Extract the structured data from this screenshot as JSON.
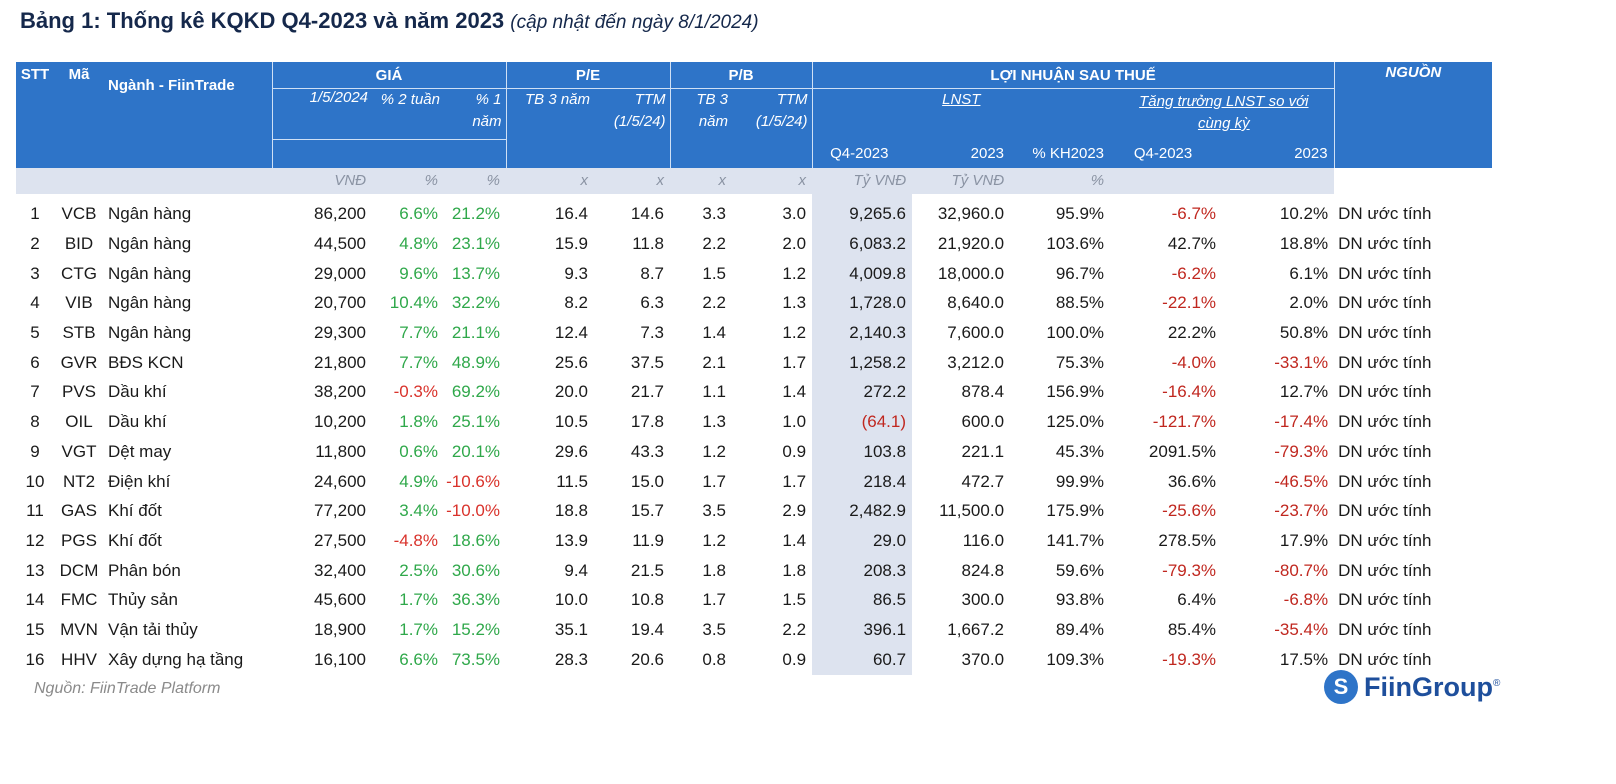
{
  "title": {
    "bold": "Bảng 1: Thống kê KQKD Q4-2023 và năm 2023",
    "note": "(cập nhật đến ngày 8/1/2024)"
  },
  "header": {
    "stt": "STT",
    "ma": "Mã",
    "nganh": "Ngành - FiinTrade",
    "gia": "GIÁ",
    "pe": "P/E",
    "pb": "P/B",
    "lnst_group": "LỢI NHUẬN SAU THUẾ",
    "nguon": "NGUỒN",
    "gia_date": "1/5/2024",
    "gia_2w": "% 2 tuần",
    "gia_1y": "% 1 năm",
    "pe_tb": "TB 3 năm",
    "pe_ttm": "TTM (1/5/24)",
    "pb_tb": "TB 3 năm",
    "pb_ttm": "TTM (1/5/24)",
    "lnst": "LNST",
    "growth": "Tăng trưởng LNST so với cùng kỳ",
    "lnst_q4": "Q4-2023",
    "lnst_2023": "2023",
    "kh2023": "% KH2023",
    "g_q4": "Q4-2023",
    "g_2023": "2023"
  },
  "units": [
    "VNĐ",
    "%",
    "%",
    "x",
    "x",
    "x",
    "x",
    "Tỷ VNĐ",
    "Tỷ VNĐ",
    "%"
  ],
  "rows": [
    {
      "stt": "1",
      "ma": "VCB",
      "nganh": "Ngân hàng",
      "price": "86,200",
      "w2": "6.6%",
      "y1": "21.2%",
      "pe_tb": "16.4",
      "pe_ttm": "14.6",
      "pb_tb": "3.3",
      "pb_ttm": "3.0",
      "q4": "9,265.6",
      "y2023": "32,960.0",
      "kh": "95.9%",
      "gq4": "-6.7%",
      "g2023": "10.2%",
      "src": "DN ước tính"
    },
    {
      "stt": "2",
      "ma": "BID",
      "nganh": "Ngân hàng",
      "price": "44,500",
      "w2": "4.8%",
      "y1": "23.1%",
      "pe_tb": "15.9",
      "pe_ttm": "11.8",
      "pb_tb": "2.2",
      "pb_ttm": "2.0",
      "q4": "6,083.2",
      "y2023": "21,920.0",
      "kh": "103.6%",
      "gq4": "42.7%",
      "g2023": "18.8%",
      "src": "DN ước tính"
    },
    {
      "stt": "3",
      "ma": "CTG",
      "nganh": "Ngân hàng",
      "price": "29,000",
      "w2": "9.6%",
      "y1": "13.7%",
      "pe_tb": "9.3",
      "pe_ttm": "8.7",
      "pb_tb": "1.5",
      "pb_ttm": "1.2",
      "q4": "4,009.8",
      "y2023": "18,000.0",
      "kh": "96.7%",
      "gq4": "-6.2%",
      "g2023": "6.1%",
      "src": "DN ước tính"
    },
    {
      "stt": "4",
      "ma": "VIB",
      "nganh": "Ngân hàng",
      "price": "20,700",
      "w2": "10.4%",
      "y1": "32.2%",
      "pe_tb": "8.2",
      "pe_ttm": "6.3",
      "pb_tb": "2.2",
      "pb_ttm": "1.3",
      "q4": "1,728.0",
      "y2023": "8,640.0",
      "kh": "88.5%",
      "gq4": "-22.1%",
      "g2023": "2.0%",
      "src": "DN ước tính"
    },
    {
      "stt": "5",
      "ma": "STB",
      "nganh": "Ngân hàng",
      "price": "29,300",
      "w2": "7.7%",
      "y1": "21.1%",
      "pe_tb": "12.4",
      "pe_ttm": "7.3",
      "pb_tb": "1.4",
      "pb_ttm": "1.2",
      "q4": "2,140.3",
      "y2023": "7,600.0",
      "kh": "100.0%",
      "gq4": "22.2%",
      "g2023": "50.8%",
      "src": "DN ước tính"
    },
    {
      "stt": "6",
      "ma": "GVR",
      "nganh": "BĐS KCN",
      "price": "21,800",
      "w2": "7.7%",
      "y1": "48.9%",
      "pe_tb": "25.6",
      "pe_ttm": "37.5",
      "pb_tb": "2.1",
      "pb_ttm": "1.7",
      "q4": "1,258.2",
      "y2023": "3,212.0",
      "kh": "75.3%",
      "gq4": "-4.0%",
      "g2023": "-33.1%",
      "src": "DN ước tính"
    },
    {
      "stt": "7",
      "ma": "PVS",
      "nganh": "Dầu khí",
      "price": "38,200",
      "w2": "-0.3%",
      "y1": "69.2%",
      "pe_tb": "20.0",
      "pe_ttm": "21.7",
      "pb_tb": "1.1",
      "pb_ttm": "1.4",
      "q4": "272.2",
      "y2023": "878.4",
      "kh": "156.9%",
      "gq4": "-16.4%",
      "g2023": "12.7%",
      "src": "DN ước tính"
    },
    {
      "stt": "8",
      "ma": "OIL",
      "nganh": "Dầu khí",
      "price": "10,200",
      "w2": "1.8%",
      "y1": "25.1%",
      "pe_tb": "10.5",
      "pe_ttm": "17.8",
      "pb_tb": "1.3",
      "pb_ttm": "1.0",
      "q4": "(64.1)",
      "y2023": "600.0",
      "kh": "125.0%",
      "gq4": "-121.7%",
      "g2023": "-17.4%",
      "src": "DN ước tính"
    },
    {
      "stt": "9",
      "ma": "VGT",
      "nganh": "Dệt may",
      "price": "11,800",
      "w2": "0.6%",
      "y1": "20.1%",
      "pe_tb": "29.6",
      "pe_ttm": "43.3",
      "pb_tb": "1.2",
      "pb_ttm": "0.9",
      "q4": "103.8",
      "y2023": "221.1",
      "kh": "45.3%",
      "gq4": "2091.5%",
      "g2023": "-79.3%",
      "src": "DN ước tính"
    },
    {
      "stt": "10",
      "ma": "NT2",
      "nganh": "Điện khí",
      "price": "24,600",
      "w2": "4.9%",
      "y1": "-10.6%",
      "pe_tb": "11.5",
      "pe_ttm": "15.0",
      "pb_tb": "1.7",
      "pb_ttm": "1.7",
      "q4": "218.4",
      "y2023": "472.7",
      "kh": "99.9%",
      "gq4": "36.6%",
      "g2023": "-46.5%",
      "src": "DN ước tính"
    },
    {
      "stt": "11",
      "ma": "GAS",
      "nganh": "Khí đốt",
      "price": "77,200",
      "w2": "3.4%",
      "y1": "-10.0%",
      "pe_tb": "18.8",
      "pe_ttm": "15.7",
      "pb_tb": "3.5",
      "pb_ttm": "2.9",
      "q4": "2,482.9",
      "y2023": "11,500.0",
      "kh": "175.9%",
      "gq4": "-25.6%",
      "g2023": "-23.7%",
      "src": "DN ước tính"
    },
    {
      "stt": "12",
      "ma": "PGS",
      "nganh": "Khí đốt",
      "price": "27,500",
      "w2": "-4.8%",
      "y1": "18.6%",
      "pe_tb": "13.9",
      "pe_ttm": "11.9",
      "pb_tb": "1.2",
      "pb_ttm": "1.4",
      "q4": "29.0",
      "y2023": "116.0",
      "kh": "141.7%",
      "gq4": "278.5%",
      "g2023": "17.9%",
      "src": "DN ước tính"
    },
    {
      "stt": "13",
      "ma": "DCM",
      "nganh": "Phân bón",
      "price": "32,400",
      "w2": "2.5%",
      "y1": "30.6%",
      "pe_tb": "9.4",
      "pe_ttm": "21.5",
      "pb_tb": "1.8",
      "pb_ttm": "1.8",
      "q4": "208.3",
      "y2023": "824.8",
      "kh": "59.6%",
      "gq4": "-79.3%",
      "g2023": "-80.7%",
      "src": "DN ước tính"
    },
    {
      "stt": "14",
      "ma": "FMC",
      "nganh": "Thủy sản",
      "price": "45,600",
      "w2": "1.7%",
      "y1": "36.3%",
      "pe_tb": "10.0",
      "pe_ttm": "10.8",
      "pb_tb": "1.7",
      "pb_ttm": "1.5",
      "q4": "86.5",
      "y2023": "300.0",
      "kh": "93.8%",
      "gq4": "6.4%",
      "g2023": "-6.8%",
      "src": "DN ước tính"
    },
    {
      "stt": "15",
      "ma": "MVN",
      "nganh": "Vận tải thủy",
      "price": "18,900",
      "w2": "1.7%",
      "y1": "15.2%",
      "pe_tb": "35.1",
      "pe_ttm": "19.4",
      "pb_tb": "3.5",
      "pb_ttm": "2.2",
      "q4": "396.1",
      "y2023": "1,667.2",
      "kh": "89.4%",
      "gq4": "85.4%",
      "g2023": "-35.4%",
      "src": "DN ước tính"
    },
    {
      "stt": "16",
      "ma": "HHV",
      "nganh": "Xây dựng hạ tầng",
      "price": "16,100",
      "w2": "6.6%",
      "y1": "73.5%",
      "pe_tb": "28.3",
      "pe_ttm": "20.6",
      "pb_tb": "0.8",
      "pb_ttm": "0.9",
      "q4": "60.7",
      "y2023": "370.0",
      "kh": "109.3%",
      "gq4": "-19.3%",
      "g2023": "17.5%",
      "src": "DN ước tính"
    }
  ],
  "footer": {
    "source": "Nguồn: FiinTrade Platform",
    "brand": "FiinGroup",
    "brand_mark": "S"
  }
}
